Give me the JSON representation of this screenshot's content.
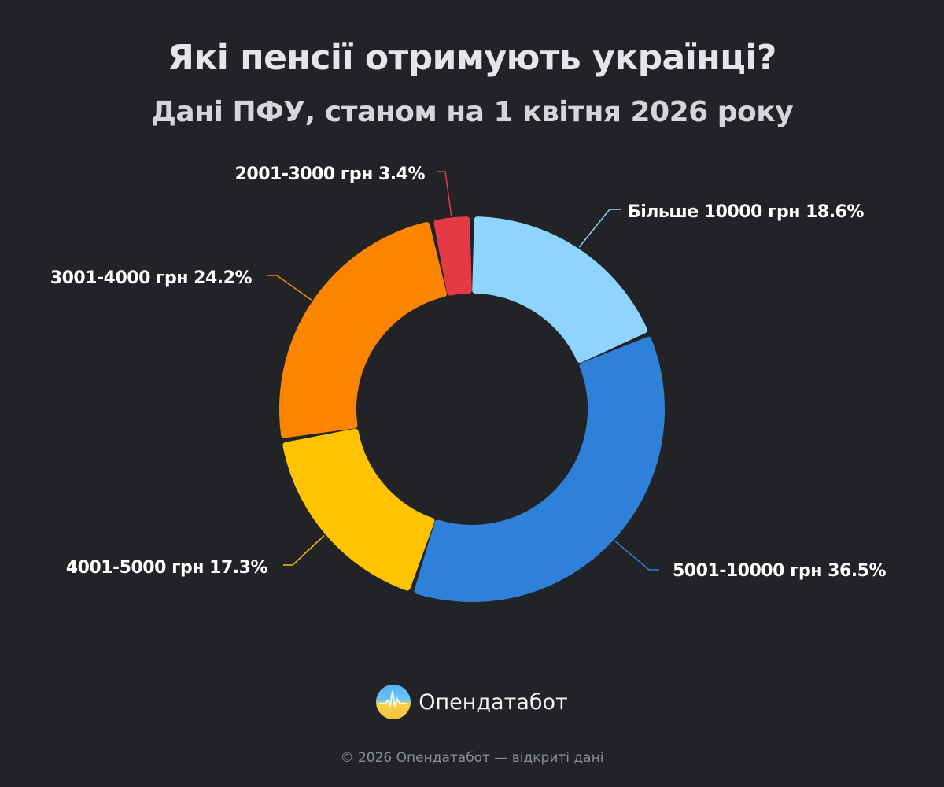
{
  "chart_data": {
    "type": "pie",
    "variant": "donut",
    "title": "Які пенсії отримують українці?",
    "subtitle": "Дані ПФУ, станом на 1 квітня 2026 року",
    "categories": [
      "Більше 10000 грн",
      "5001-10000 грн",
      "4001-5000 грн",
      "3001-4000 грн",
      "2001-3000 грн"
    ],
    "values": [
      18.6,
      36.5,
      17.3,
      24.2,
      3.4
    ],
    "labels": [
      "Більше 10000 грн 18.6%",
      "5001-10000 грн 36.5%",
      "4001-5000 грн 17.3%",
      "3001-4000 грн 24.2%",
      "2001-3000 грн 3.4%"
    ],
    "colors": [
      "#8ed4fd",
      "#2e80d9",
      "#ffc300",
      "#fb8500",
      "#e63946"
    ],
    "start": "12 o'clock, clockwise",
    "legend": "none"
  },
  "brand": {
    "name": "Опендатабот",
    "icon": "opendatabot-logo"
  },
  "footer": "© 2026 Опендатабот — відкриті дані",
  "background": "#212327"
}
